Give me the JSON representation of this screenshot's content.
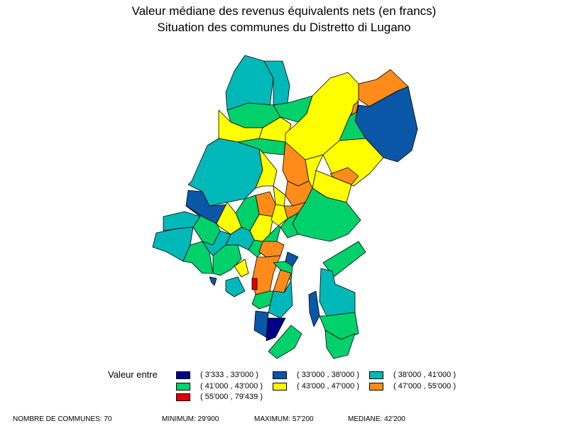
{
  "title_line1": "Valeur médiane des revenus équivalents nets (en francs)",
  "title_line2": "Situation des communes du Distretto di Lugano",
  "legend": {
    "heading": "Valeur entre",
    "classes": [
      {
        "label": "( 3'333 , 33'000 )",
        "color": "#00008b"
      },
      {
        "label": "( 33'000 , 38'000 )",
        "color": "#0a57a8"
      },
      {
        "label": "( 38'000 , 41'000 )",
        "color": "#00b8b8"
      },
      {
        "label": "( 41'000 , 43'000 )",
        "color": "#00d16b"
      },
      {
        "label": "( 43'000 , 47'000 )",
        "color": "#ffff00"
      },
      {
        "label": "( 47'000 , 55'000 )",
        "color": "#ff8c1a"
      },
      {
        "label": "( 55'000 , 79'439 )",
        "color": "#e00000"
      }
    ]
  },
  "footer": {
    "count": "NOMBRE DE COMMUNES: 70",
    "min": "MINIMUM: 29'900",
    "max": "MAXIMUM: 57'200",
    "median": "MEDIANE: 42'200"
  }
}
